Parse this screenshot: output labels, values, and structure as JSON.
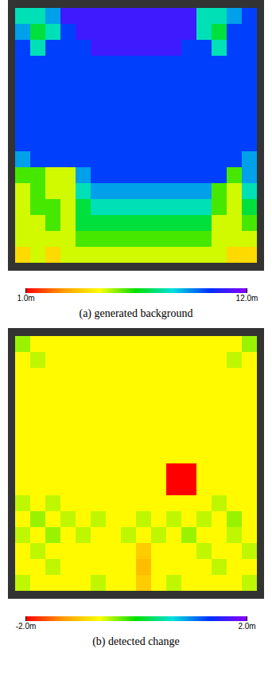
{
  "chart_data": [
    {
      "type": "heatmap",
      "title": "(a) generated background",
      "tick_labels": false,
      "color_range": [
        1,
        12
      ],
      "color_ticks": [
        {
          "value": 1,
          "label": "1.0m"
        },
        {
          "value": 12,
          "label": "12.0m"
        }
      ],
      "z": [
        [
          8,
          8,
          9,
          11,
          11,
          11,
          11,
          11,
          11,
          11,
          11,
          11,
          8,
          8,
          9,
          10
        ],
        [
          9,
          7,
          8,
          10,
          11,
          11,
          11,
          11,
          11,
          11,
          11,
          11,
          8,
          7,
          10,
          10
        ],
        [
          10,
          8,
          10,
          10,
          10,
          11,
          11,
          11,
          11,
          11,
          11,
          10,
          10,
          8,
          10,
          10
        ],
        [
          10,
          10,
          10,
          10,
          10,
          10,
          10,
          10,
          10,
          10,
          10,
          10,
          10,
          10,
          10,
          10
        ],
        [
          10,
          10,
          10,
          10,
          10,
          10,
          10,
          10,
          10,
          10,
          10,
          10,
          10,
          10,
          10,
          10
        ],
        [
          10,
          10,
          10,
          10,
          10,
          10,
          10,
          10,
          10,
          10,
          10,
          10,
          10,
          10,
          10,
          10
        ],
        [
          10,
          10,
          10,
          10,
          10,
          10,
          10,
          10,
          10,
          10,
          10,
          10,
          10,
          10,
          10,
          10
        ],
        [
          10,
          10,
          10,
          10,
          10,
          10,
          10,
          10,
          10,
          10,
          10,
          10,
          10,
          10,
          10,
          10
        ],
        [
          10,
          10,
          10,
          10,
          10,
          10,
          10,
          10,
          10,
          10,
          10,
          10,
          10,
          10,
          10,
          10
        ],
        [
          9,
          10,
          10,
          10,
          10,
          10,
          10,
          10,
          10,
          10,
          10,
          10,
          10,
          10,
          10,
          9
        ],
        [
          6,
          6,
          5,
          5,
          9,
          10,
          10,
          10,
          10,
          10,
          10,
          10,
          10,
          10,
          6,
          9
        ],
        [
          5,
          6,
          5,
          5,
          8,
          9,
          9,
          9,
          9,
          9,
          9,
          9,
          9,
          6,
          5,
          8
        ],
        [
          5,
          6,
          6,
          5,
          7,
          8,
          8,
          8,
          8,
          8,
          8,
          8,
          8,
          6,
          5,
          7
        ],
        [
          5,
          5,
          6,
          5,
          7,
          7,
          7,
          7,
          7,
          7,
          7,
          7,
          7,
          5,
          5,
          6
        ],
        [
          5,
          5,
          5,
          5,
          6,
          6,
          6,
          6,
          6,
          6,
          6,
          6,
          6,
          5,
          5,
          5
        ],
        [
          4,
          5,
          4,
          5,
          5,
          5,
          5,
          5,
          5,
          5,
          5,
          5,
          5,
          5,
          4,
          4
        ]
      ]
    },
    {
      "type": "heatmap",
      "title": "(b) detected change",
      "tick_labels": false,
      "color_range": [
        -2,
        2
      ],
      "color_ticks": [
        {
          "value": -2,
          "label": "-2.0m"
        },
        {
          "value": 2,
          "label": "2.0m"
        }
      ],
      "z": [
        [
          -0.4,
          -0.7,
          -0.7,
          -0.7,
          -0.7,
          -0.7,
          -0.7,
          -0.7,
          -0.7,
          -0.7,
          -0.7,
          -0.7,
          -0.7,
          -0.7,
          -0.7,
          -0.4
        ],
        [
          -0.7,
          -0.5,
          -0.7,
          -0.7,
          -0.7,
          -0.7,
          -0.7,
          -0.7,
          -0.7,
          -0.7,
          -0.7,
          -0.7,
          -0.7,
          -0.7,
          -0.5,
          -0.7
        ],
        [
          -0.7,
          -0.7,
          -0.7,
          -0.7,
          -0.7,
          -0.7,
          -0.7,
          -0.7,
          -0.7,
          -0.7,
          -0.7,
          -0.7,
          -0.7,
          -0.7,
          -0.7,
          -0.7
        ],
        [
          -0.7,
          -0.7,
          -0.7,
          -0.7,
          -0.7,
          -0.7,
          -0.7,
          -0.7,
          -0.7,
          -0.7,
          -0.7,
          -0.7,
          -0.7,
          -0.7,
          -0.7,
          -0.7
        ],
        [
          -0.7,
          -0.7,
          -0.7,
          -0.7,
          -0.7,
          -0.7,
          -0.7,
          -0.7,
          -0.7,
          -0.7,
          -0.7,
          -0.7,
          -0.7,
          -0.7,
          -0.7,
          -0.7
        ],
        [
          -0.7,
          -0.7,
          -0.7,
          -0.7,
          -0.7,
          -0.7,
          -0.7,
          -0.7,
          -0.7,
          -0.7,
          -0.7,
          -0.7,
          -0.7,
          -0.7,
          -0.7,
          -0.7
        ],
        [
          -0.7,
          -0.7,
          -0.7,
          -0.7,
          -0.7,
          -0.7,
          -0.7,
          -0.7,
          -0.7,
          -0.7,
          -0.7,
          -0.7,
          -0.7,
          -0.7,
          -0.7,
          -0.7
        ],
        [
          -0.7,
          -0.7,
          -0.7,
          -0.7,
          -0.7,
          -0.7,
          -0.7,
          -0.7,
          -0.7,
          -0.7,
          -0.7,
          -0.7,
          -0.7,
          -0.7,
          -0.7,
          -0.7
        ],
        [
          -0.7,
          -0.7,
          -0.7,
          -0.7,
          -0.7,
          -0.7,
          -0.7,
          -0.7,
          -0.7,
          -0.7,
          -2,
          -2,
          -0.7,
          -0.7,
          -0.7,
          -0.7
        ],
        [
          -0.7,
          -0.7,
          -0.7,
          -0.7,
          -0.7,
          -0.7,
          -0.7,
          -0.7,
          -0.7,
          -0.7,
          -2,
          -2,
          -0.7,
          -0.7,
          -0.7,
          -0.7
        ],
        [
          -0.5,
          -0.7,
          -0.5,
          -0.7,
          -0.7,
          -0.7,
          -0.7,
          -0.7,
          -0.7,
          -0.7,
          -0.7,
          -0.7,
          -0.7,
          -0.5,
          -0.7,
          -0.7
        ],
        [
          -0.7,
          -0.4,
          -0.7,
          -0.5,
          -0.7,
          -0.5,
          -0.7,
          -0.7,
          -0.5,
          -0.7,
          -0.5,
          -0.7,
          -0.5,
          -0.7,
          -0.4,
          -0.7
        ],
        [
          -0.5,
          -0.7,
          -0.4,
          -0.7,
          -0.5,
          -0.7,
          -0.7,
          -0.5,
          -0.7,
          -0.5,
          -0.7,
          -0.4,
          -0.7,
          -0.7,
          -0.5,
          -0.7
        ],
        [
          -0.7,
          -0.5,
          -0.7,
          -0.7,
          -0.7,
          -0.7,
          -0.7,
          -0.7,
          -1.0,
          -0.7,
          -0.7,
          -0.7,
          -0.5,
          -0.7,
          -0.7,
          -0.5
        ],
        [
          -0.7,
          -0.7,
          -0.5,
          -0.7,
          -0.7,
          -0.7,
          -0.7,
          -0.7,
          -1.1,
          -0.7,
          -0.7,
          -0.7,
          -0.7,
          -0.5,
          -0.7,
          -0.7
        ],
        [
          -0.5,
          -0.7,
          -0.7,
          -0.7,
          -0.7,
          -0.5,
          -0.7,
          -0.7,
          -1.0,
          -0.7,
          -0.5,
          -0.7,
          -0.7,
          -0.7,
          -0.7,
          -0.5
        ]
      ]
    }
  ]
}
